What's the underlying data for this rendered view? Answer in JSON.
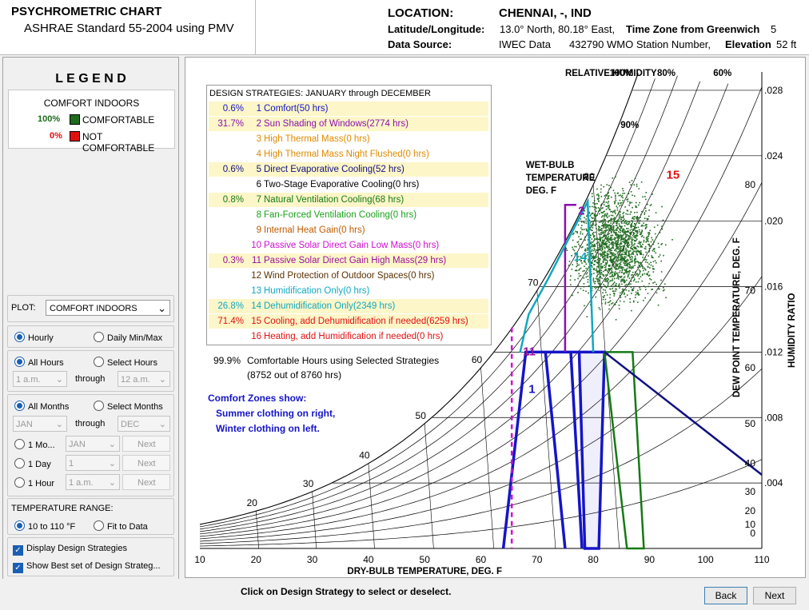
{
  "header": {
    "title": "PSYCHROMETRIC CHART",
    "subtitle": "ASHRAE Standard 55-2004 using PMV",
    "location_label": "LOCATION:",
    "location_value": "CHENNAI, -, IND",
    "latlon_label": "Latitude/Longitude:",
    "latlon_value": "13.0° North, 80.18° East,",
    "timezone_label": "Time Zone from Greenwich",
    "timezone_value": "5",
    "datasource_label": "Data Source:",
    "datasource_value": "IWEC Data",
    "station_value": "432790 WMO Station Number,",
    "elevation_label": "Elevation",
    "elevation_value": "52 ft"
  },
  "legend": {
    "title": "L E G E N D",
    "heading": "COMFORT INDOORS",
    "items": [
      {
        "pct": "100%",
        "label": "COMFORTABLE",
        "color": "#1e6b1e"
      },
      {
        "pct": "0%",
        "label": "NOT COMFORTABLE",
        "color": "#e01010"
      }
    ]
  },
  "controls": {
    "plot_label": "PLOT:",
    "plot_value": "COMFORT INDOORS",
    "hourly": "Hourly",
    "daily": "Daily Min/Max",
    "all_hours": "All Hours",
    "select_hours": "Select Hours",
    "hour_from": "1 a.m.",
    "through": "through",
    "hour_to": "12 a.m.",
    "all_months": "All Months",
    "select_months": "Select Months",
    "month_from": "JAN",
    "month_to": "DEC",
    "one_month": "1 Mo...",
    "one_month_value": "JAN",
    "one_day": "1 Day",
    "one_day_value": "1",
    "one_hour": "1 Hour",
    "one_hour_value": "1 a.m.",
    "next": "Next",
    "temp_range_label": "TEMPERATURE RANGE:",
    "range_a": "10 to 110 °F",
    "range_b": "Fit to Data",
    "display_strategies": "Display Design Strategies",
    "show_best": "Show Best set of Design Strateg..."
  },
  "strategies": {
    "title": "DESIGN STRATEGIES:  JANUARY through DECEMBER",
    "items": [
      {
        "pct": "0.6%",
        "num": "1",
        "label": "Comfort(50 hrs)",
        "color": "#1515c8",
        "hl": true
      },
      {
        "pct": "31.7%",
        "num": "2",
        "label": "Sun Shading of Windows(2774 hrs)",
        "color": "#8a10b0",
        "hl": true
      },
      {
        "pct": "",
        "num": "3",
        "label": "High Thermal Mass(0 hrs)",
        "color": "#e08a00",
        "hl": false
      },
      {
        "pct": "",
        "num": "4",
        "label": "High Thermal Mass Night Flushed(0 hrs)",
        "color": "#e08a00",
        "hl": false
      },
      {
        "pct": "0.6%",
        "num": "5",
        "label": "Direct Evaporative Cooling(52 hrs)",
        "color": "#101080",
        "hl": true
      },
      {
        "pct": "",
        "num": "6",
        "label": "Two-Stage Evaporative Cooling(0 hrs)",
        "color": "#000000",
        "hl": false
      },
      {
        "pct": "0.8%",
        "num": "7",
        "label": "Natural Ventilation Cooling(68 hrs)",
        "color": "#157a15",
        "hl": true
      },
      {
        "pct": "",
        "num": "8",
        "label": "Fan-Forced Ventilation Cooling(0 hrs)",
        "color": "#1aa01a",
        "hl": false
      },
      {
        "pct": "",
        "num": "9",
        "label": "Internal Heat Gain(0 hrs)",
        "color": "#c05a00",
        "hl": false
      },
      {
        "pct": "",
        "num": "10",
        "label": "Passive Solar Direct Gain Low Mass(0 hrs)",
        "color": "#d010d0",
        "hl": false
      },
      {
        "pct": "0.3%",
        "num": "11",
        "label": "Passive Solar Direct Gain High Mass(29 hrs)",
        "color": "#9a109a",
        "hl": true
      },
      {
        "pct": "",
        "num": "12",
        "label": "Wind Protection of Outdoor Spaces(0 hrs)",
        "color": "#5a3000",
        "hl": false
      },
      {
        "pct": "",
        "num": "13",
        "label": "Humidification Only(0 hrs)",
        "color": "#10a8c0",
        "hl": false
      },
      {
        "pct": "26.8%",
        "num": "14",
        "label": "Dehumidification Only(2349 hrs)",
        "color": "#10a8c0",
        "hl": true
      },
      {
        "pct": "71.4%",
        "num": "15",
        "label": "Cooling, add Dehumidification if needed(6259 hrs)",
        "color": "#e01010",
        "hl": true
      },
      {
        "pct": "",
        "num": "16",
        "label": "Heating, add Humidification if needed(0 hrs)",
        "color": "#e01010",
        "hl": false
      }
    ],
    "summary_pct": "99.9%",
    "summary_text": "Comfortable Hours using Selected Strategies",
    "summary_sub": "(8752 out of 8760 hrs)",
    "zones_title": "Comfort Zones show:",
    "zones_line1": "Summer clothing on right,",
    "zones_line2": "Winter clothing on left."
  },
  "chart": {
    "rh_title": "RELATIVE HUMIDITY",
    "rh_labels": [
      "100%",
      "80%",
      "60%",
      "90%"
    ],
    "wb_title_1": "WET-BULB",
    "wb_title_2": "TEMPERATURE",
    "wb_title_3": "DEG. F",
    "xlabel": "DRY-BULB TEMPERATURE, DEG. F",
    "dp_label": "DEW POINT TEMPERATURE, DEG. F",
    "hr_label": "HUMIDITY RATIO",
    "x_ticks": [
      "10",
      "20",
      "30",
      "40",
      "50",
      "60",
      "70",
      "80",
      "90",
      "100",
      "110"
    ],
    "hr_ticks": [
      ".028",
      ".024",
      ".020",
      ".016",
      ".012",
      ".008",
      ".004"
    ],
    "dp_ticks": [
      "80",
      "70",
      "60",
      "50",
      "40",
      "30",
      "20",
      "10",
      "0"
    ],
    "wb_ticks": [
      "20",
      "30",
      "40",
      "50",
      "60",
      "70",
      "80"
    ],
    "zone_labels": [
      "1",
      "2",
      "11",
      "14",
      "15"
    ]
  },
  "footer": {
    "hint": "Click on Design Strategy to select or deselect.",
    "back": "Back",
    "next": "Next"
  }
}
